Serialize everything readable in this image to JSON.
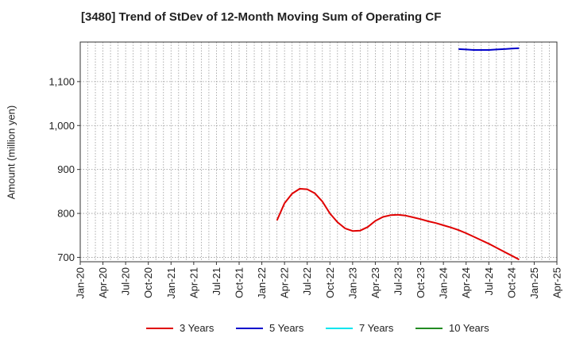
{
  "chart_data": {
    "type": "line",
    "title": "[3480]  Trend of StDev of 12-Month Moving Sum of Operating CF",
    "ylabel": "Amount (million yen)",
    "xlabel": "",
    "ylim": [
      690,
      1190
    ],
    "yticks": [
      700,
      800,
      900,
      1000,
      1100
    ],
    "ytick_labels": [
      "700",
      "800",
      "900",
      "1,000",
      "1,100"
    ],
    "xlim": [
      "2020-01",
      "2025-04"
    ],
    "xtick_labels": [
      "Jan-20",
      "Apr-20",
      "Jul-20",
      "Oct-20",
      "Jan-21",
      "Apr-21",
      "Jul-21",
      "Oct-21",
      "Jan-22",
      "Apr-22",
      "Jul-22",
      "Oct-22",
      "Jan-23",
      "Apr-23",
      "Jul-23",
      "Oct-23",
      "Jan-24",
      "Apr-24",
      "Jul-24",
      "Oct-24",
      "Jan-25",
      "Apr-25"
    ],
    "grid": true,
    "legend_position": "bottom",
    "series": [
      {
        "name": "3 Years",
        "color": "#e00000",
        "points": [
          [
            "2022-03",
            784
          ],
          [
            "2022-04",
            823
          ],
          [
            "2022-05",
            845
          ],
          [
            "2022-06",
            856
          ],
          [
            "2022-07",
            855
          ],
          [
            "2022-08",
            846
          ],
          [
            "2022-09",
            827
          ],
          [
            "2022-10",
            800
          ],
          [
            "2022-11",
            780
          ],
          [
            "2022-12",
            766
          ],
          [
            "2023-01",
            760
          ],
          [
            "2023-02",
            761
          ],
          [
            "2023-03",
            769
          ],
          [
            "2023-04",
            783
          ],
          [
            "2023-05",
            792
          ],
          [
            "2023-06",
            796
          ],
          [
            "2023-07",
            797
          ],
          [
            "2023-08",
            795
          ],
          [
            "2023-09",
            791
          ],
          [
            "2023-10",
            787
          ],
          [
            "2023-11",
            782
          ],
          [
            "2023-12",
            778
          ],
          [
            "2024-01",
            773
          ],
          [
            "2024-02",
            768
          ],
          [
            "2024-03",
            762
          ],
          [
            "2024-04",
            755
          ],
          [
            "2024-05",
            747
          ],
          [
            "2024-06",
            739
          ],
          [
            "2024-07",
            731
          ],
          [
            "2024-08",
            722
          ],
          [
            "2024-09",
            713
          ],
          [
            "2024-10",
            704
          ],
          [
            "2024-11",
            695
          ]
        ]
      },
      {
        "name": "5 Years",
        "color": "#0000cc",
        "points": [
          [
            "2024-03",
            1174
          ],
          [
            "2024-04",
            1173
          ],
          [
            "2024-05",
            1172
          ],
          [
            "2024-06",
            1172
          ],
          [
            "2024-07",
            1172
          ],
          [
            "2024-08",
            1173
          ],
          [
            "2024-09",
            1174
          ],
          [
            "2024-10",
            1175
          ],
          [
            "2024-11",
            1176
          ]
        ]
      },
      {
        "name": "7 Years",
        "color": "#00e5ee",
        "points": []
      },
      {
        "name": "10 Years",
        "color": "#228b22",
        "points": []
      }
    ]
  }
}
